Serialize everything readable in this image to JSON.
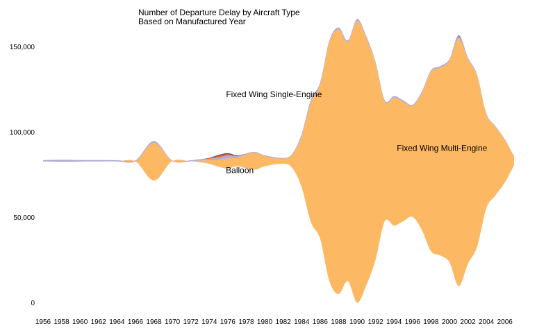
{
  "chart_data": {
    "type": "area",
    "title_lines": [
      "Number of Departure Delay by Aircraft Type",
      "Based on Manufactured Year"
    ],
    "xlabel": "",
    "ylabel": "",
    "ylim": [
      0,
      165000
    ],
    "y_ticks": [
      0,
      50000,
      100000,
      150000
    ],
    "y_tick_labels": [
      "0",
      "50,000",
      "100,000",
      "150,000"
    ],
    "x_tick_labels": [
      "1956",
      "1958",
      "1960",
      "1962",
      "1964",
      "1966",
      "1968",
      "1970",
      "1972",
      "1974",
      "1976",
      "1978",
      "1980",
      "1982",
      "1984",
      "1986",
      "1988",
      "1990",
      "1992",
      "1994",
      "1996",
      "1998",
      "2000",
      "2002",
      "2004",
      "2006"
    ],
    "x": [
      1956,
      1958,
      1960,
      1962,
      1964,
      1966,
      1968,
      1970,
      1972,
      1973,
      1974,
      1975,
      1976,
      1977,
      1978,
      1979,
      1980,
      1982,
      1983,
      1984,
      1985,
      1986,
      1987,
      1988,
      1989,
      1990,
      1991,
      1992,
      1993,
      1994,
      1995,
      1996,
      1997,
      1998,
      1999,
      2000,
      2001,
      2002,
      2003,
      2004,
      2005,
      2006,
      2007
    ],
    "baseline_center": 83000,
    "series": [
      {
        "name": "Fixed Wing Multi-Engine",
        "color": "#fdb863",
        "values": [
          0,
          0,
          0,
          0,
          0,
          0,
          22000,
          0,
          0,
          1000,
          2000,
          4000,
          6000,
          5000,
          8000,
          10000,
          6000,
          3000,
          8000,
          30000,
          70000,
          90000,
          140000,
          155000,
          140000,
          165000,
          145000,
          115000,
          70000,
          75000,
          70000,
          65000,
          80000,
          105000,
          110000,
          118000,
          145000,
          120000,
          100000,
          55000,
          40000,
          25000,
          5000
        ]
      },
      {
        "name": "Fixed Wing Single-Engine",
        "color": "#b2abd2",
        "values": [
          800,
          1200,
          900,
          800,
          700,
          600,
          1200,
          400,
          600,
          800,
          1000,
          1500,
          1700,
          1000,
          600,
          400,
          500,
          400,
          600,
          1200,
          1800,
          1600,
          1000,
          1200,
          1000,
          1200,
          1000,
          900,
          800,
          900,
          800,
          700,
          800,
          900,
          900,
          800,
          1400,
          900,
          600,
          500,
          400,
          300,
          200
        ]
      },
      {
        "name": "Balloon",
        "color": "#e66101",
        "values": [
          0,
          0,
          0,
          0,
          0,
          0,
          0,
          0,
          0,
          0,
          300,
          900,
          700,
          200,
          0,
          0,
          0,
          0,
          0,
          0,
          0,
          0,
          0,
          0,
          0,
          0,
          0,
          0,
          0,
          0,
          0,
          0,
          0,
          0,
          0,
          0,
          0,
          0,
          0,
          0,
          0,
          0,
          0
        ]
      },
      {
        "name": "",
        "color": "#5e3c99",
        "values": [
          0,
          0,
          0,
          0,
          0,
          0,
          0,
          0,
          0,
          0,
          200,
          500,
          600,
          300,
          0,
          0,
          0,
          0,
          0,
          0,
          0,
          0,
          0,
          0,
          0,
          0,
          0,
          0,
          0,
          0,
          0,
          0,
          0,
          0,
          0,
          0,
          400,
          0,
          0,
          0,
          0,
          0,
          0
        ]
      }
    ],
    "stream_labels": [
      {
        "text": "Fixed Wing Single-Engine",
        "x": 1981.0,
        "y": 122000
      },
      {
        "text": "Fixed Wing Multi-Engine",
        "x": 1999.2,
        "y": 90500
      },
      {
        "text": "Balloon",
        "x": 1977.3,
        "y": 77500
      }
    ],
    "legend": "none",
    "grid": false
  }
}
